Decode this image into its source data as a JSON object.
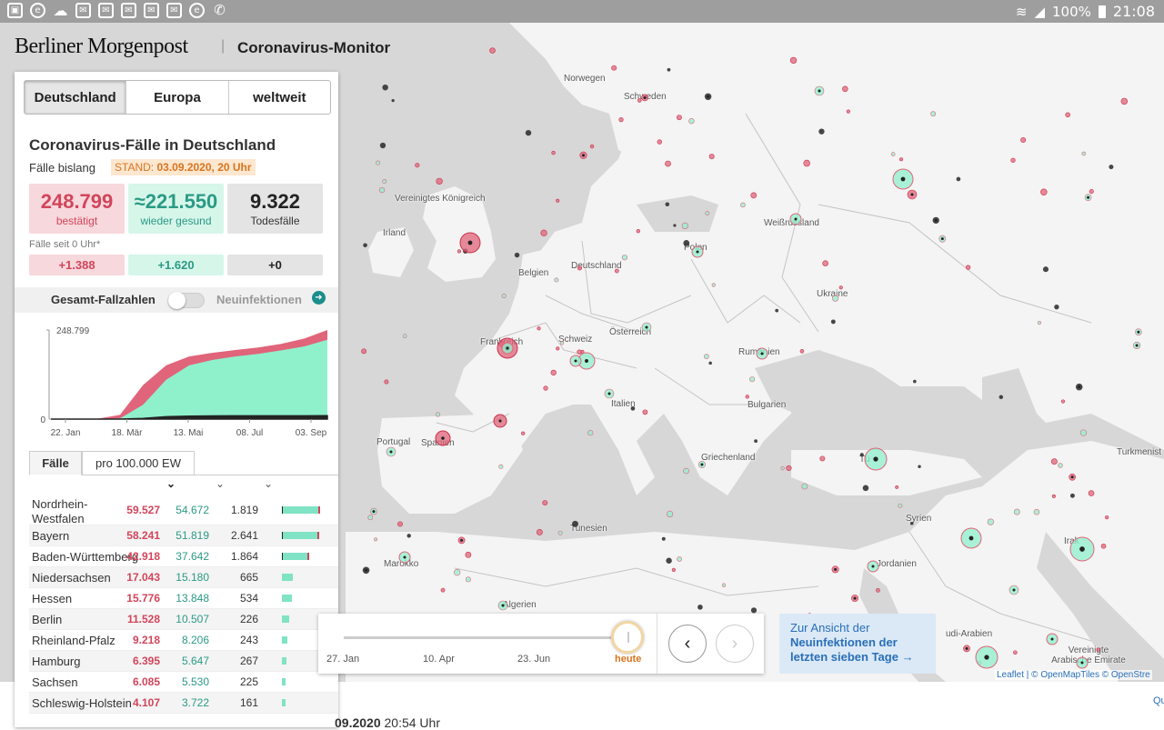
{
  "statusbar": {
    "battery": "100%",
    "time": "21:08",
    "icons": [
      "image-icon",
      "e-icon",
      "cloud-icon",
      "mail-icon",
      "mail-icon",
      "mail-icon",
      "mail-icon",
      "mail-icon",
      "e-icon",
      "phone-icon"
    ]
  },
  "header": {
    "brand": "Berliner Morgenpost",
    "separator": "|",
    "title": "Coronavirus-Monitor"
  },
  "region_tabs": [
    "Deutschland",
    "Europa",
    "weltweit"
  ],
  "panel": {
    "title": "Coronavirus-Fälle in Deutschland",
    "subtitle": "Fälle bislang",
    "stand_label": "STAND:",
    "stand_value": "03.09.2020, 20 Uhr",
    "confirmed": {
      "value": "248.799",
      "label": "bestätigt"
    },
    "recovered": {
      "value": "≈221.550",
      "label": "wieder gesund"
    },
    "deaths": {
      "value": "9.322",
      "label": "Todesfälle"
    },
    "since_label": "Fälle seit 0 Uhr*",
    "delta_confirmed": "+1.388",
    "delta_recovered": "+1.620",
    "delta_deaths": "+0",
    "toggle_left": "Gesamt-Fallzahlen",
    "toggle_right": "Neuinfektionen",
    "stat_tab_1": "Fälle",
    "stat_tab_2": "pro 100.000 EW"
  },
  "chart_data": {
    "type": "area",
    "x_ticks": [
      "22. Jan",
      "18. Mär",
      "13. Mai",
      "08. Jul",
      "03. Sep"
    ],
    "y_ticks": [
      "248.799",
      "0"
    ],
    "ylim": [
      0,
      248799
    ],
    "series": [
      {
        "color": "#e0647a",
        "values": [
          0,
          0,
          500,
          12000,
          95000,
          150000,
          175000,
          185000,
          193000,
          200000,
          210000,
          225000,
          248799
        ]
      },
      {
        "color": "#8ff0cc",
        "values": [
          0,
          0,
          0,
          2000,
          40000,
          110000,
          150000,
          165000,
          175000,
          182000,
          192000,
          203000,
          221550
        ]
      },
      {
        "color": "#222222",
        "values": [
          0,
          0,
          0,
          50,
          2000,
          6500,
          8300,
          8900,
          9050,
          9120,
          9200,
          9260,
          9322
        ]
      }
    ]
  },
  "states": [
    {
      "name": "Nordrhein-Westfalen",
      "confirmed": "59.527",
      "recovered": "54.672",
      "deaths": "1.819",
      "share": 1.0
    },
    {
      "name": "Bayern",
      "confirmed": "58.241",
      "recovered": "51.819",
      "deaths": "2.641",
      "share": 0.98
    },
    {
      "name": "Baden-Württemberg",
      "confirmed": "42.918",
      "recovered": "37.642",
      "deaths": "1.864",
      "share": 0.72
    },
    {
      "name": "Niedersachsen",
      "confirmed": "17.043",
      "recovered": "15.180",
      "deaths": "665",
      "share": 0.29
    },
    {
      "name": "Hessen",
      "confirmed": "15.776",
      "recovered": "13.848",
      "deaths": "534",
      "share": 0.27
    },
    {
      "name": "Berlin",
      "confirmed": "11.528",
      "recovered": "10.507",
      "deaths": "226",
      "share": 0.19
    },
    {
      "name": "Rheinland-Pfalz",
      "confirmed": "9.218",
      "recovered": "8.206",
      "deaths": "243",
      "share": 0.15
    },
    {
      "name": "Hamburg",
      "confirmed": "6.395",
      "recovered": "5.647",
      "deaths": "267",
      "share": 0.11
    },
    {
      "name": "Sachsen",
      "confirmed": "6.085",
      "recovered": "5.530",
      "deaths": "225",
      "share": 0.1
    },
    {
      "name": "Schleswig-Holstein",
      "confirmed": "4.107",
      "recovered": "3.722",
      "deaths": "161",
      "share": 0.07
    }
  ],
  "slider": {
    "ticks": [
      "27. Jan",
      "10. Apr",
      "23. Jun",
      "heute"
    ],
    "position": 1.0
  },
  "cta": {
    "line1": "Zur Ansicht der",
    "line2": "Neuinfektionen der letzten sieben Tage",
    "arrow": "→"
  },
  "attribution": "Leaflet | © OpenMapTiles © OpenStre",
  "map_labels": [
    "Norwegen",
    "Schweden",
    "Vereinigtes Königreich",
    "Irland",
    "Weißrussland",
    "Polen",
    "Deutschland",
    "Belgien",
    "Ukraine",
    "Österreich",
    "Frankreich",
    "Schweiz",
    "Rumänien",
    "Italien",
    "Bulgarien",
    "Portugal",
    "Spanien",
    "Griechenland",
    "Turkmenist",
    "Tunesien",
    "Syrien",
    "Marokko",
    "Jordanien",
    "Algerien",
    "Irak",
    "udi-Arabien",
    "Vereinigte Arabische Emirate",
    "Tü"
  ],
  "bottom": {
    "date_bold": "09.2020",
    "time": "20:54 Uhr",
    "right": "Qu"
  },
  "colors": {
    "confirmed": "#d2455b",
    "recovered": "#2a9a84",
    "accent": "#d9741f",
    "link": "#2a6fb8"
  }
}
